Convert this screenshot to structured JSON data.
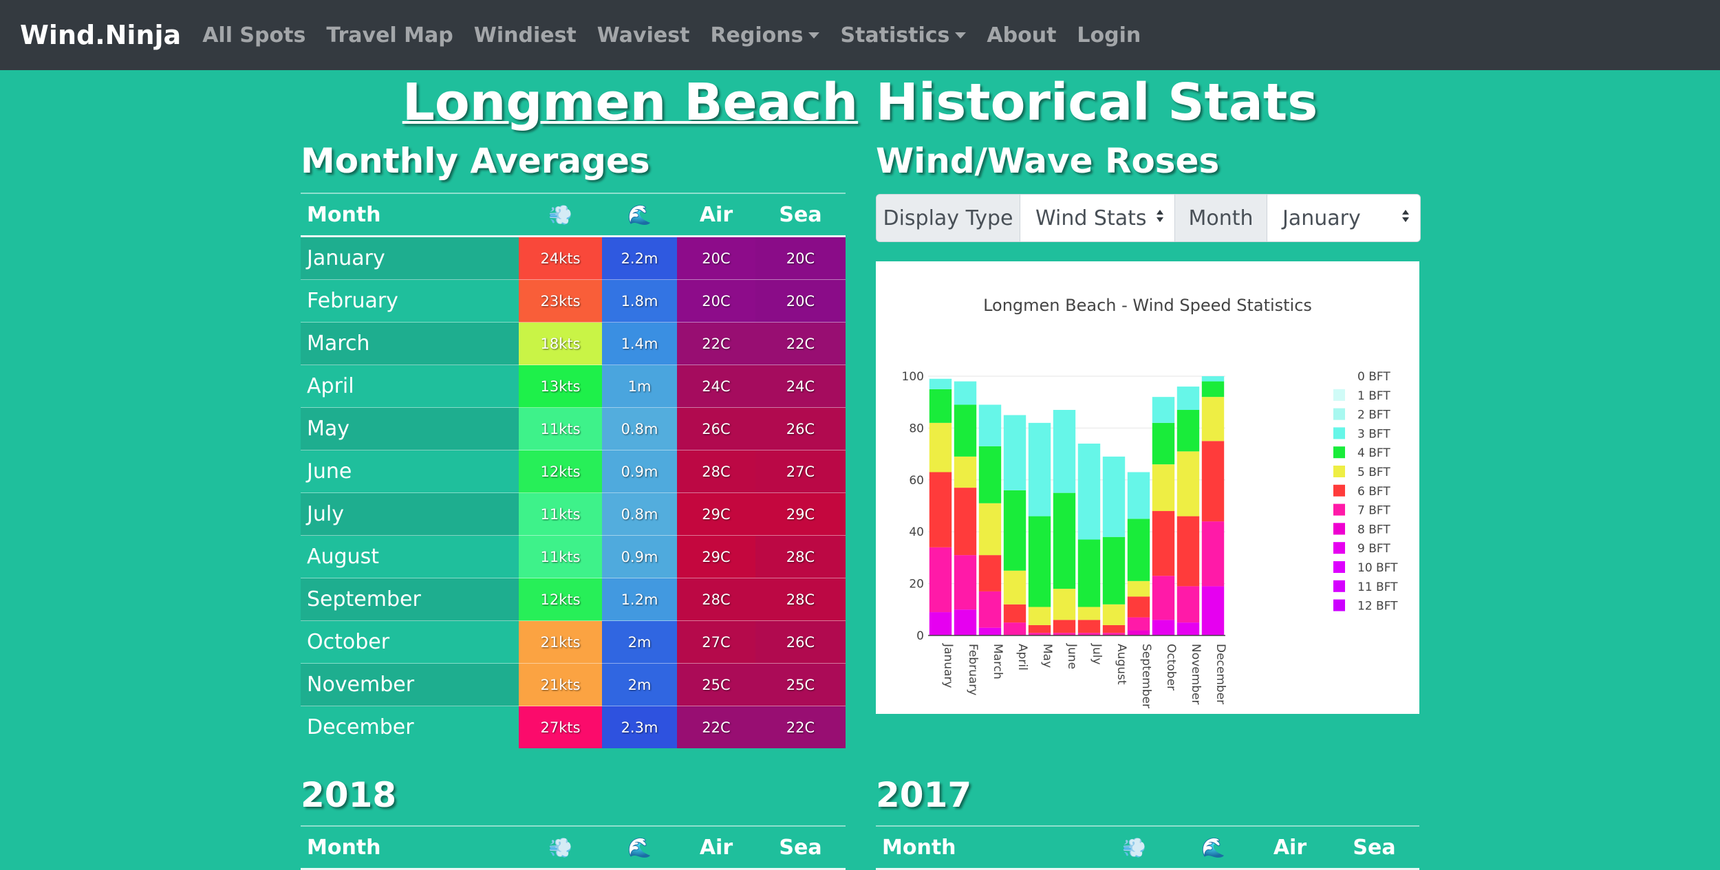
{
  "nav": {
    "brand": "Wind.Ninja",
    "items": [
      {
        "label": "All Spots",
        "dropdown": false
      },
      {
        "label": "Travel Map",
        "dropdown": false
      },
      {
        "label": "Windiest",
        "dropdown": false
      },
      {
        "label": "Waviest",
        "dropdown": false
      },
      {
        "label": "Regions",
        "dropdown": true
      },
      {
        "label": "Statistics",
        "dropdown": true
      },
      {
        "label": "About",
        "dropdown": false
      },
      {
        "label": "Login",
        "dropdown": false
      }
    ]
  },
  "page": {
    "spot_name": "Longmen Beach",
    "title_suffix": " Historical Stats"
  },
  "monthly": {
    "title": "Monthly Averages",
    "headers": {
      "month": "Month",
      "wind_icon": "💨",
      "wave_icon": "🌊",
      "air": "Air",
      "sea": "Sea"
    },
    "rows": [
      {
        "month": "January",
        "wind": "24kts",
        "wave": "2.2m",
        "air": "20C",
        "sea": "20C",
        "wind_color": "#f9483a",
        "wave_color": "#2f59e0",
        "air_color": "#8d0c8a",
        "sea_color": "#8a0c88"
      },
      {
        "month": "February",
        "wind": "23kts",
        "wave": "1.8m",
        "air": "20C",
        "sea": "20C",
        "wind_color": "#f95e39",
        "wave_color": "#3374e3",
        "air_color": "#8d0c8a",
        "sea_color": "#8a0c88"
      },
      {
        "month": "March",
        "wind": "18kts",
        "wave": "1.4m",
        "air": "22C",
        "sea": "22C",
        "wind_color": "#c9f446",
        "wave_color": "#3a8fe2",
        "air_color": "#980e72",
        "sea_color": "#980e72"
      },
      {
        "month": "April",
        "wind": "13kts",
        "wave": "1m",
        "air": "24C",
        "sea": "24C",
        "wind_color": "#1ef04a",
        "wave_color": "#4aa5de",
        "air_color": "#a50c5e",
        "sea_color": "#a50c5e"
      },
      {
        "month": "May",
        "wind": "11kts",
        "wave": "0.8m",
        "air": "26C",
        "sea": "26C",
        "wind_color": "#3ef28a",
        "wave_color": "#53addd",
        "air_color": "#b10a4f",
        "sea_color": "#b10a4f"
      },
      {
        "month": "June",
        "wind": "12kts",
        "wave": "0.9m",
        "air": "28C",
        "sea": "27C",
        "wind_color": "#27ef58",
        "wave_color": "#4faadd",
        "air_color": "#bc0844",
        "sea_color": "#ba0846"
      },
      {
        "month": "July",
        "wind": "11kts",
        "wave": "0.8m",
        "air": "29C",
        "sea": "29C",
        "wind_color": "#3ef28a",
        "wave_color": "#53addd",
        "air_color": "#c4073e",
        "sea_color": "#c4073e"
      },
      {
        "month": "August",
        "wind": "11kts",
        "wave": "0.9m",
        "air": "29C",
        "sea": "28C",
        "wind_color": "#3ef28a",
        "wave_color": "#4faadd",
        "air_color": "#c4073e",
        "sea_color": "#bc0844"
      },
      {
        "month": "September",
        "wind": "12kts",
        "wave": "1.2m",
        "air": "28C",
        "sea": "28C",
        "wind_color": "#27ef58",
        "wave_color": "#4299e0",
        "air_color": "#bc0844",
        "sea_color": "#bc0844"
      },
      {
        "month": "October",
        "wind": "21kts",
        "wave": "2m",
        "air": "27C",
        "sea": "26C",
        "wind_color": "#fba342",
        "wave_color": "#3066e1",
        "air_color": "#b50a4b",
        "sea_color": "#b10a4f"
      },
      {
        "month": "November",
        "wind": "21kts",
        "wave": "2m",
        "air": "25C",
        "sea": "25C",
        "wind_color": "#fba342",
        "wave_color": "#3066e1",
        "air_color": "#ab0b57",
        "sea_color": "#ab0b57"
      },
      {
        "month": "December",
        "wind": "27kts",
        "wave": "2.3m",
        "air": "22C",
        "sea": "22C",
        "wind_color": "#fb0b6b",
        "wave_color": "#2e52df",
        "air_color": "#980e72",
        "sea_color": "#980e72"
      }
    ]
  },
  "roses": {
    "title": "Wind/Wave Roses",
    "display_type_label": "Display Type",
    "display_type_value": "Wind Stats",
    "month_label": "Month",
    "month_value": "January"
  },
  "chart_data": {
    "type": "bar",
    "stacked": true,
    "title": "Longmen Beach - Wind Speed Statistics",
    "xlabel": "",
    "ylabel": "",
    "ylim": [
      0,
      100
    ],
    "yticks": [
      0,
      20,
      40,
      60,
      80,
      100
    ],
    "legend_position": "right",
    "categories": [
      "January",
      "February",
      "March",
      "April",
      "May",
      "June",
      "July",
      "August",
      "September",
      "October",
      "November",
      "December"
    ],
    "series": [
      {
        "name": "12 BFT",
        "color": "#cc00ff",
        "values": [
          0,
          0,
          0,
          0,
          0,
          0,
          0,
          0,
          0,
          0,
          0,
          0
        ]
      },
      {
        "name": "11 BFT",
        "color": "#d500ff",
        "values": [
          0,
          0,
          0,
          0,
          0,
          0,
          0,
          0,
          0,
          0,
          0,
          0
        ]
      },
      {
        "name": "10 BFT",
        "color": "#dd00ff",
        "values": [
          0,
          0,
          0,
          0,
          0,
          0,
          0,
          0,
          0,
          0,
          0,
          0
        ]
      },
      {
        "name": "9 BFT",
        "color": "#e600f0",
        "values": [
          9,
          10,
          3,
          0,
          0,
          0,
          0,
          0,
          0,
          6,
          5,
          19
        ]
      },
      {
        "name": "8 BFT",
        "color": "#ee00d0",
        "values": [
          0,
          0,
          0,
          0,
          0,
          0,
          0,
          0,
          2,
          0,
          0,
          0
        ]
      },
      {
        "name": "7 BFT",
        "color": "#ff1aa8",
        "values": [
          25,
          21,
          14,
          5,
          1,
          1,
          1,
          1,
          5,
          17,
          14,
          25
        ]
      },
      {
        "name": "6 BFT",
        "color": "#ff3b3b",
        "values": [
          29,
          26,
          14,
          7,
          3,
          5,
          5,
          3,
          8,
          25,
          27,
          31
        ]
      },
      {
        "name": "5 BFT",
        "color": "#eeee44",
        "values": [
          19,
          12,
          20,
          13,
          7,
          12,
          5,
          8,
          6,
          18,
          25,
          17
        ]
      },
      {
        "name": "4 BFT",
        "color": "#19ec3a",
        "values": [
          13,
          20,
          22,
          31,
          35,
          37,
          26,
          26,
          24,
          16,
          16,
          6
        ]
      },
      {
        "name": "3 BFT",
        "color": "#66f6e8",
        "values": [
          4,
          9,
          16,
          29,
          36,
          32,
          37,
          31,
          18,
          10,
          9,
          2
        ]
      },
      {
        "name": "2 BFT",
        "color": "#a8f8f0",
        "values": [
          0,
          0,
          0,
          0,
          0,
          0,
          0,
          0,
          0,
          0,
          0,
          0
        ]
      },
      {
        "name": "1 BFT",
        "color": "#d0fbf7",
        "values": [
          0,
          0,
          0,
          0,
          0,
          0,
          0,
          0,
          0,
          0,
          0,
          0
        ]
      },
      {
        "name": "0 BFT",
        "color": "#ffffff",
        "values": [
          0,
          0,
          0,
          0,
          0,
          0,
          0,
          0,
          0,
          0,
          0,
          0
        ]
      }
    ],
    "legend_order": [
      "0 BFT",
      "1 BFT",
      "2 BFT",
      "3 BFT",
      "4 BFT",
      "5 BFT",
      "6 BFT",
      "7 BFT",
      "8 BFT",
      "9 BFT",
      "10 BFT",
      "11 BFT",
      "12 BFT"
    ]
  },
  "year_left": {
    "title": "2018",
    "headers": {
      "month": "Month",
      "wind_icon": "💨",
      "wave_icon": "🌊",
      "air": "Air",
      "sea": "Sea"
    }
  },
  "year_right": {
    "title": "2017",
    "headers": {
      "month": "Month",
      "wind_icon": "💨",
      "wave_icon": "🌊",
      "air": "Air",
      "sea": "Sea"
    }
  }
}
